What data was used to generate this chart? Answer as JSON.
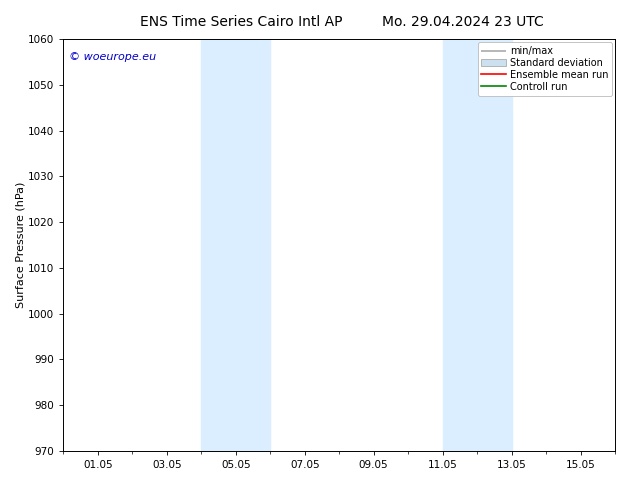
{
  "title_left": "ENS Time Series Cairo Intl AP",
  "title_right": "Mo. 29.04.2024 23 UTC",
  "ylabel": "Surface Pressure (hPa)",
  "ylim": [
    970,
    1060
  ],
  "yticks": [
    970,
    980,
    990,
    1000,
    1010,
    1020,
    1030,
    1040,
    1050,
    1060
  ],
  "xtick_labels": [
    "01.05",
    "03.05",
    "05.05",
    "07.05",
    "09.05",
    "11.05",
    "13.05",
    "15.05"
  ],
  "xtick_positions": [
    1,
    3,
    5,
    7,
    9,
    11,
    13,
    15
  ],
  "xmin": 0,
  "xmax": 16,
  "blue_shade_bands": [
    {
      "xmin": 4.0,
      "xmax": 6.0
    },
    {
      "xmin": 11.0,
      "xmax": 13.0
    }
  ],
  "shade_color": "#daeeff",
  "watermark": "© woeurope.eu",
  "watermark_color": "#0000cc",
  "background_color": "#ffffff",
  "plot_bg_color": "#ffffff",
  "legend_entries": [
    "min/max",
    "Standard deviation",
    "Ensemble mean run",
    "Controll run"
  ],
  "minmax_color": "#aaaaaa",
  "std_facecolor": "#cce0f0",
  "ens_color": "#ff0000",
  "ctrl_color": "#008800",
  "title_fontsize": 10,
  "label_fontsize": 8,
  "tick_fontsize": 7.5,
  "watermark_fontsize": 8,
  "legend_fontsize": 7
}
